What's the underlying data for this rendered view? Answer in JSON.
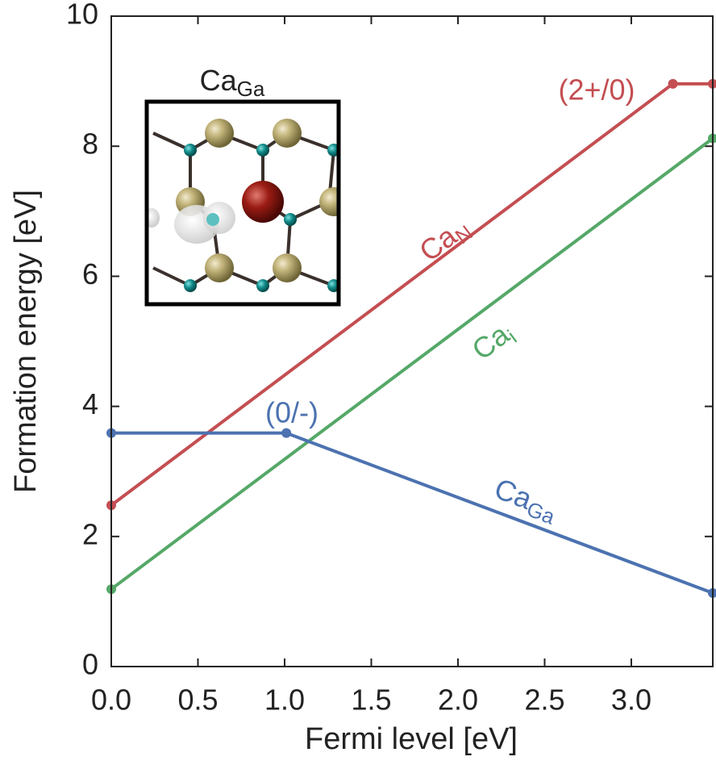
{
  "chart_data": {
    "type": "line",
    "xlabel": "Fermi level [eV]",
    "ylabel": "Formation energy [eV]",
    "xlim": [
      0,
      3.47
    ],
    "ylim": [
      0,
      10
    ],
    "xticks": [
      {
        "value": 0,
        "label": "0.0"
      },
      0.5,
      {
        "value": 1,
        "label": "1.0"
      },
      1.5,
      {
        "value": 2,
        "label": "2.0"
      },
      2.5,
      {
        "value": 3,
        "label": "3.0"
      }
    ],
    "yticks": [
      0,
      2,
      4,
      6,
      8,
      10
    ],
    "grid": false,
    "series": [
      {
        "label": {
          "base": "Ca",
          "sub": "N"
        },
        "color": "#c44e52",
        "x": [
          0,
          3.24,
          3.47
        ],
        "values": [
          2.48,
          8.96,
          8.96
        ],
        "transition_label": "(2+/0)"
      },
      {
        "label": {
          "base": "Ca",
          "sub": "i"
        },
        "color": "#55a868",
        "x": [
          0,
          3.47
        ],
        "values": [
          1.19,
          8.12
        ]
      },
      {
        "label": {
          "base": "Ca",
          "sub": "Ga"
        },
        "color": "#4c72b0",
        "x": [
          0,
          1.01,
          3.47
        ],
        "values": [
          3.59,
          3.59,
          1.13
        ],
        "transition_label": "(0/-)"
      }
    ],
    "inset_title": {
      "base": "Ca",
      "sub": "Ga"
    }
  }
}
